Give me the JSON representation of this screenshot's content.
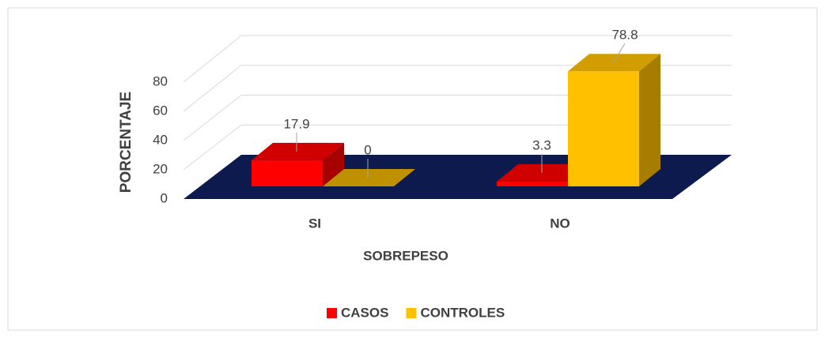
{
  "chart_data": {
    "type": "bar3d",
    "categories": [
      "SI",
      "NO"
    ],
    "series": [
      {
        "name": "CASOS",
        "color": "#ff0000",
        "values": [
          17.9,
          3.3
        ]
      },
      {
        "name": "CONTROLES",
        "color": "#ffc000",
        "values": [
          0,
          78.8
        ]
      }
    ],
    "xlabel": "SOBREPESO",
    "ylabel": "PORCENTAJE",
    "ylim": [
      0,
      80
    ],
    "yticks": [
      0,
      20,
      40,
      60,
      80
    ],
    "grid": true,
    "legend": "bottom"
  }
}
